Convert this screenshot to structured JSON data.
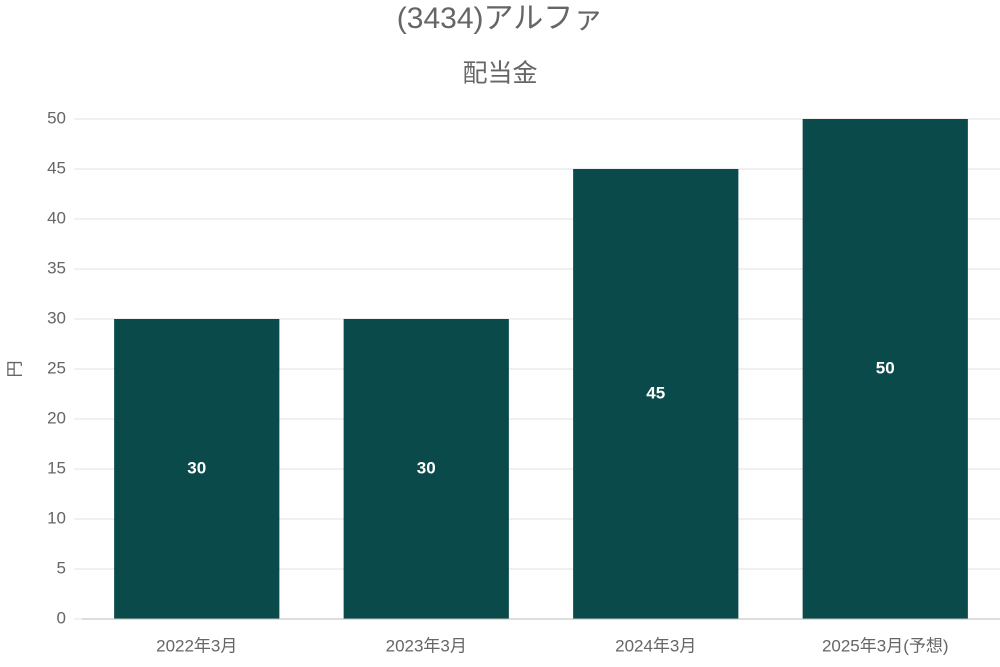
{
  "chart_data": {
    "type": "bar",
    "title": "(3434)アルファ",
    "subtitle": "配当金",
    "y_label": "円",
    "categories": [
      "2022年3月",
      "2023年3月",
      "2024年3月",
      "2025年3月(予想)"
    ],
    "values": [
      30,
      30,
      45,
      50
    ],
    "color": "#0b4a4a",
    "ylim": [
      0,
      50
    ],
    "yticks": [
      0,
      5,
      10,
      15,
      20,
      25,
      30,
      35,
      40,
      45,
      50
    ],
    "grid": true,
    "data_labels": true
  }
}
